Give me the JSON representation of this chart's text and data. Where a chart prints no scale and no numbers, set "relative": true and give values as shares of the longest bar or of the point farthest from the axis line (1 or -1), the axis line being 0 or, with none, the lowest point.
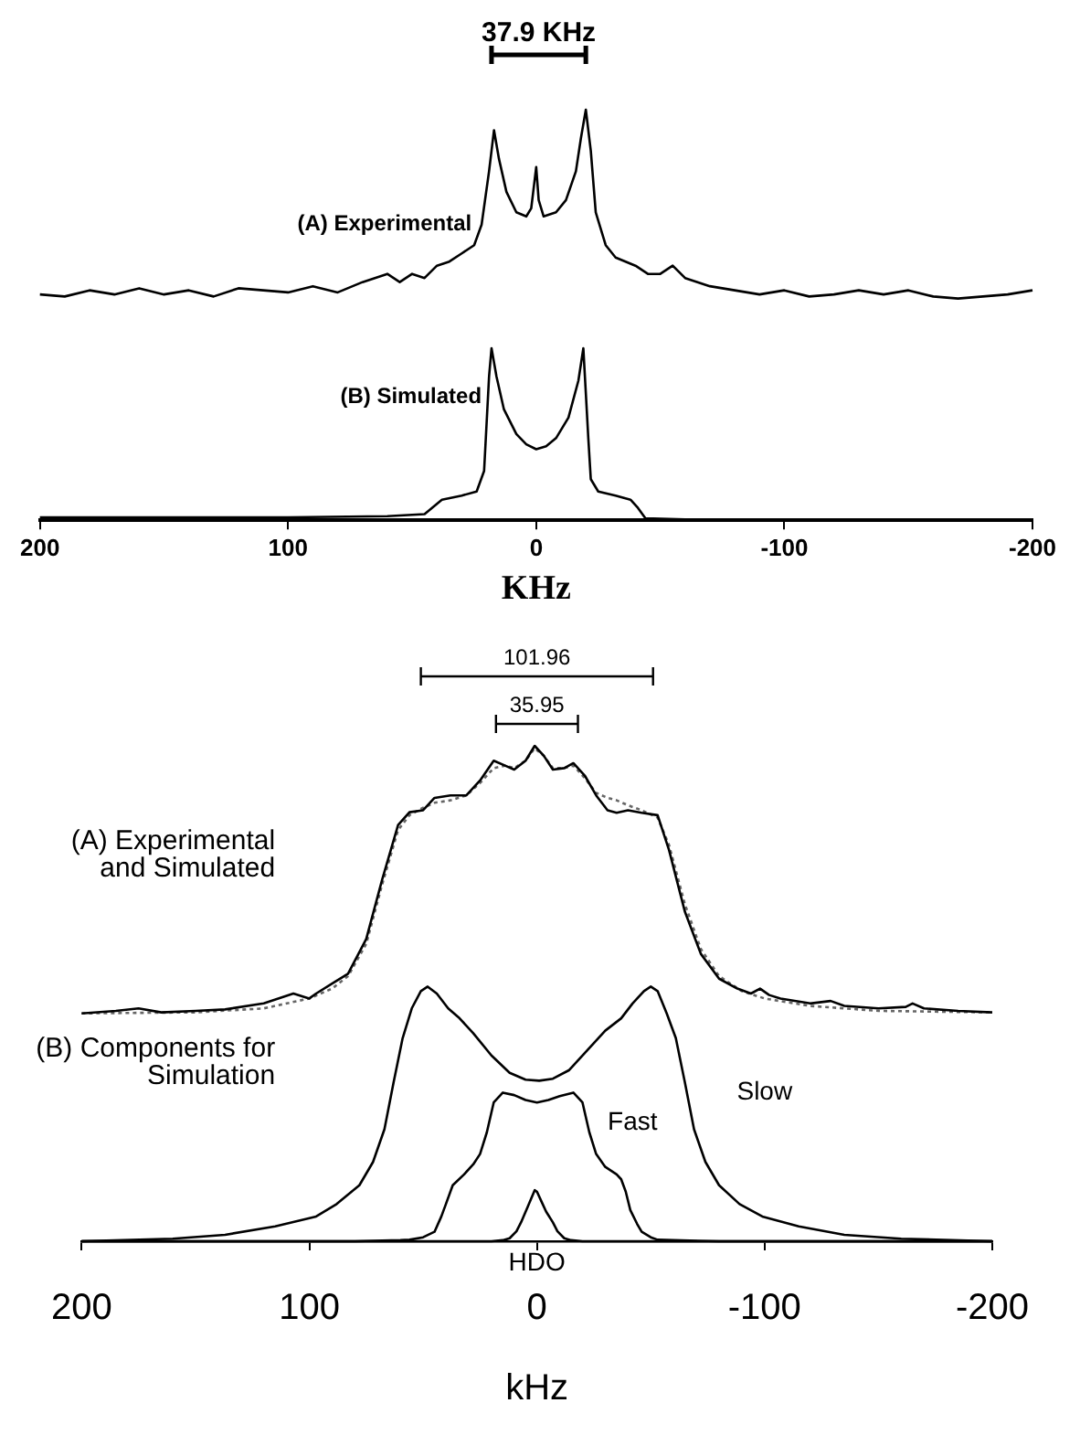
{
  "chart_data": [
    {
      "type": "line",
      "relative": true,
      "xlabel": "KHz",
      "xlim": [
        200,
        -200
      ],
      "xticks": [
        200,
        100,
        0,
        -100,
        -200
      ],
      "tick_labels": "x",
      "grid": false,
      "legend": false,
      "marker": "none",
      "annotations": [
        "37.9 KHz"
      ],
      "series": [
        {
          "name": "(A) Experimental",
          "color": "#000000",
          "x": [
            200,
            190,
            180,
            170,
            160,
            150,
            140,
            130,
            120,
            110,
            100,
            90,
            80,
            70,
            60,
            55,
            50,
            45,
            40,
            35,
            30,
            25,
            22,
            19,
            17,
            15,
            12,
            8,
            4,
            2,
            0,
            -1,
            -3,
            -8,
            -12,
            -16,
            -18,
            -20,
            -22,
            -24,
            -28,
            -32,
            -36,
            -40,
            -45,
            -50,
            -55,
            -60,
            -65,
            -70,
            -80,
            -90,
            -100,
            -110,
            -120,
            -130,
            -140,
            -150,
            -160,
            -170,
            -180,
            -190,
            -200
          ],
          "values": [
            0.55,
            0.545,
            0.56,
            0.55,
            0.565,
            0.55,
            0.56,
            0.545,
            0.565,
            0.56,
            0.555,
            0.57,
            0.555,
            0.58,
            0.6,
            0.58,
            0.6,
            0.59,
            0.62,
            0.63,
            0.65,
            0.67,
            0.72,
            0.85,
            0.95,
            0.88,
            0.8,
            0.75,
            0.74,
            0.76,
            0.86,
            0.78,
            0.74,
            0.75,
            0.78,
            0.85,
            0.93,
            1.0,
            0.9,
            0.75,
            0.67,
            0.64,
            0.63,
            0.62,
            0.6,
            0.6,
            0.62,
            0.59,
            0.58,
            0.57,
            0.56,
            0.55,
            0.56,
            0.545,
            0.55,
            0.56,
            0.55,
            0.56,
            0.545,
            0.54,
            0.545,
            0.55,
            0.56
          ]
        },
        {
          "name": "(B) Simulated",
          "color": "#000000",
          "x": [
            200,
            100,
            60,
            45,
            42,
            38,
            30,
            24,
            21,
            19,
            18,
            16,
            13,
            8,
            4,
            0,
            -4,
            -8,
            -13,
            -17,
            -19,
            -21,
            -22,
            -25,
            -32,
            -38,
            -41,
            -44,
            -60,
            -100,
            -200
          ],
          "values": [
            0.007,
            0.007,
            0.01,
            0.015,
            0.03,
            0.05,
            0.06,
            0.07,
            0.12,
            0.35,
            0.419,
            0.35,
            0.27,
            0.21,
            0.185,
            0.173,
            0.18,
            0.2,
            0.25,
            0.34,
            0.419,
            0.2,
            0.1,
            0.07,
            0.06,
            0.05,
            0.03,
            0.005,
            0.002,
            0,
            0
          ]
        }
      ]
    },
    {
      "type": "line",
      "relative": true,
      "xlabel": "kHz",
      "xlim": [
        200,
        -200
      ],
      "xticks": [
        200,
        100,
        0,
        -100,
        -200
      ],
      "tick_labels": "x",
      "grid": false,
      "legend": false,
      "marker": "none",
      "annotations": [
        "101.96",
        "35.95",
        "(A) Experimental and Simulated",
        "(B) Components for Simulation"
      ],
      "series": [
        {
          "color": "#000000",
          "x": [
            200,
            185,
            175,
            165,
            150,
            137,
            120,
            107,
            100,
            97,
            90,
            83,
            75,
            68,
            61,
            56,
            50,
            45,
            38,
            31,
            25,
            19,
            14,
            10,
            5,
            1,
            -3,
            -7,
            -12,
            -16,
            -21,
            -26,
            -31,
            -35,
            -40,
            -46,
            -53,
            -58,
            -65,
            -72,
            -80,
            -88,
            -94,
            -98,
            -102,
            -107,
            -120,
            -129,
            -135,
            -150,
            -162,
            -165,
            -170,
            -185,
            -200
          ],
          "values": [
            0.46,
            0.465,
            0.47,
            0.462,
            0.465,
            0.468,
            0.48,
            0.5,
            0.49,
            0.5,
            0.52,
            0.54,
            0.61,
            0.73,
            0.84,
            0.866,
            0.87,
            0.895,
            0.9,
            0.9,
            0.93,
            0.97,
            0.96,
            0.952,
            0.97,
            1.0,
            0.98,
            0.952,
            0.955,
            0.965,
            0.94,
            0.9,
            0.87,
            0.865,
            0.87,
            0.865,
            0.86,
            0.79,
            0.665,
            0.58,
            0.53,
            0.51,
            0.5,
            0.51,
            0.497,
            0.49,
            0.48,
            0.485,
            0.475,
            0.47,
            0.473,
            0.48,
            0.47,
            0.465,
            0.462
          ]
        },
        {
          "color": "#666666",
          "line_style": "dotted",
          "x": [
            200,
            150,
            120,
            100,
            90,
            83,
            75,
            68,
            61,
            56,
            50,
            45,
            38,
            31,
            25,
            19,
            14,
            10,
            5,
            1,
            -3,
            -7,
            -12,
            -16,
            -21,
            -26,
            -31,
            -35,
            -40,
            -46,
            -53,
            -58,
            -65,
            -72,
            -80,
            -90,
            -100,
            -120,
            -150,
            -200
          ],
          "values": [
            0.46,
            0.462,
            0.47,
            0.49,
            0.51,
            0.535,
            0.6,
            0.72,
            0.83,
            0.86,
            0.875,
            0.885,
            0.89,
            0.9,
            0.925,
            0.955,
            0.96,
            0.955,
            0.97,
            0.995,
            0.98,
            0.955,
            0.955,
            0.96,
            0.935,
            0.905,
            0.895,
            0.89,
            0.88,
            0.87,
            0.855,
            0.8,
            0.68,
            0.59,
            0.535,
            0.505,
            0.49,
            0.475,
            0.465,
            0.462
          ]
        },
        {
          "name": "Slow",
          "color": "#000000",
          "x": [
            200,
            160,
            137,
            115,
            97,
            88,
            78,
            72,
            67,
            63,
            59,
            55,
            51,
            48,
            44,
            39,
            34,
            28,
            20,
            12,
            5,
            -1,
            -7,
            -14,
            -22,
            -30,
            -37,
            -42,
            -47,
            -50,
            -53,
            -57,
            -61,
            -65,
            -69,
            -74,
            -80,
            -89,
            -99,
            -115,
            -135,
            -160,
            -200
          ],
          "values": [
            0,
            0.005,
            0.013,
            0.03,
            0.05,
            0.075,
            0.113,
            0.16,
            0.226,
            0.32,
            0.41,
            0.47,
            0.505,
            0.514,
            0.5,
            0.47,
            0.45,
            0.42,
            0.375,
            0.34,
            0.326,
            0.324,
            0.328,
            0.345,
            0.385,
            0.425,
            0.45,
            0.48,
            0.505,
            0.514,
            0.505,
            0.46,
            0.41,
            0.32,
            0.226,
            0.16,
            0.113,
            0.075,
            0.05,
            0.03,
            0.013,
            0.005,
            0
          ]
        },
        {
          "name": "Fast",
          "color": "#000000",
          "x": [
            200,
            80,
            60,
            56,
            50,
            45,
            42,
            40,
            37,
            32,
            28,
            25,
            22,
            19,
            15,
            10,
            5,
            0,
            -5,
            -10,
            -16,
            -20,
            -23,
            -26,
            -30,
            -35,
            -37,
            -39,
            -41,
            -44,
            -46,
            -50,
            -53,
            -60,
            -80,
            -200
          ],
          "values": [
            0,
            0,
            0.002,
            0.003,
            0.008,
            0.019,
            0.05,
            0.075,
            0.113,
            0.135,
            0.155,
            0.176,
            0.22,
            0.28,
            0.3,
            0.295,
            0.285,
            0.28,
            0.285,
            0.293,
            0.3,
            0.28,
            0.22,
            0.176,
            0.15,
            0.135,
            0.125,
            0.1,
            0.063,
            0.035,
            0.019,
            0.008,
            0.003,
            0.002,
            0,
            0
          ]
        },
        {
          "name": "HDO",
          "color": "#000000",
          "x": [
            200,
            20,
            15,
            12,
            9,
            7,
            4,
            1,
            0,
            -2,
            -4,
            -7,
            -9,
            -12,
            -15,
            -20,
            -200
          ],
          "values": [
            0,
            0,
            0.002,
            0.006,
            0.02,
            0.038,
            0.07,
            0.103,
            0.1,
            0.08,
            0.06,
            0.038,
            0.02,
            0.006,
            0.002,
            0,
            0
          ]
        }
      ]
    }
  ]
}
